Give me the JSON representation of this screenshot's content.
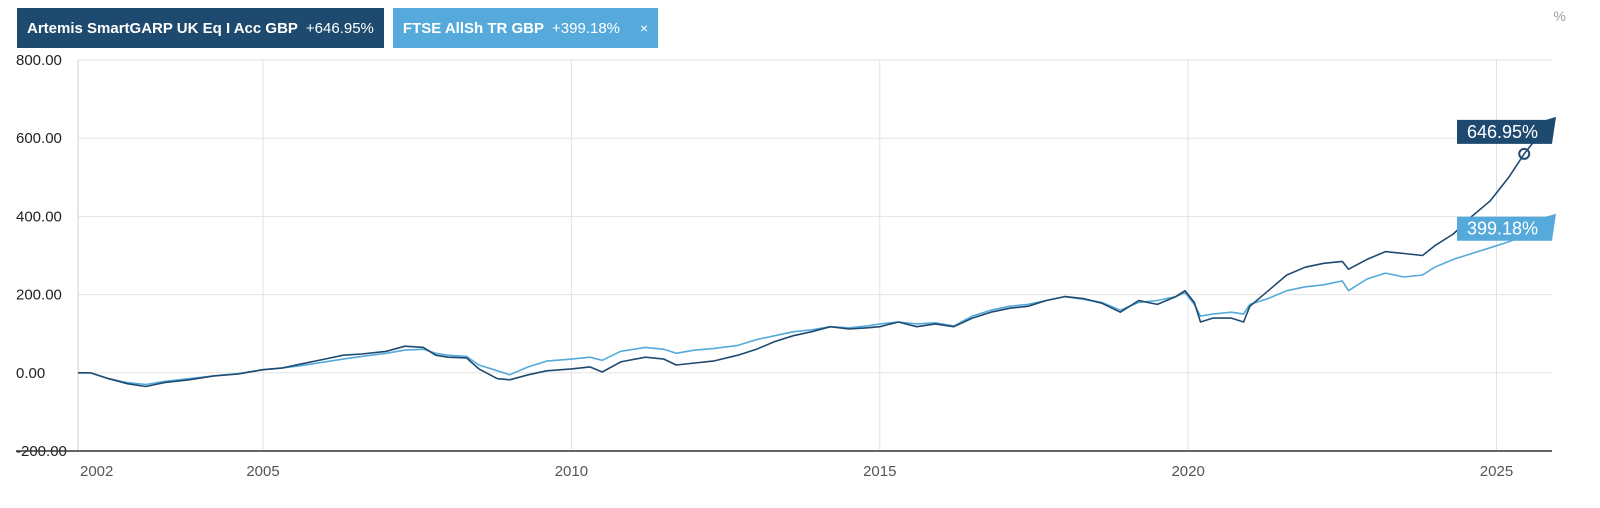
{
  "legend": {
    "fund": {
      "name": "Artemis SmartGARP UK Eq I Acc GBP",
      "change": "+646.95%"
    },
    "index": {
      "name": "FTSE AllSh TR GBP",
      "change": "+399.18%",
      "close_glyph": "×"
    }
  },
  "unit_label": "%",
  "colors": {
    "fund": "#1f4a70",
    "index": "#55aadb",
    "grid": "#e3e3e3"
  },
  "chart_data": {
    "type": "line",
    "title": "",
    "xlabel": "",
    "ylabel": "",
    "ylim": [
      -200,
      800
    ],
    "y_ticks": [
      {
        "value": 800,
        "label": "800.00"
      },
      {
        "value": 600,
        "label": "600.00"
      },
      {
        "value": 400,
        "label": "400.00"
      },
      {
        "value": 200,
        "label": "200.00"
      },
      {
        "value": 0,
        "label": "0.00"
      },
      {
        "value": -200,
        "label": "-200.00"
      }
    ],
    "x_ticks": [
      {
        "value": 2002,
        "label": "2002"
      },
      {
        "value": 2005,
        "label": "2005"
      },
      {
        "value": 2010,
        "label": "2010"
      },
      {
        "value": 2015,
        "label": "2015"
      },
      {
        "value": 2020,
        "label": "2020"
      },
      {
        "value": 2025,
        "label": "2025"
      }
    ],
    "xlim": [
      2002.0,
      2025.9
    ],
    "grid": true,
    "legend_position": "top-left",
    "series": [
      {
        "key": "fund",
        "name": "Artemis SmartGARP UK Eq I Acc GBP",
        "end_label": "646.95%",
        "points": [
          [
            2002.0,
            0
          ],
          [
            2002.2,
            0
          ],
          [
            2002.5,
            -15
          ],
          [
            2002.8,
            -28
          ],
          [
            2003.1,
            -35
          ],
          [
            2003.4,
            -25
          ],
          [
            2003.8,
            -18
          ],
          [
            2004.2,
            -8
          ],
          [
            2004.6,
            -3
          ],
          [
            2005.0,
            8
          ],
          [
            2005.3,
            12
          ],
          [
            2005.6,
            22
          ],
          [
            2006.0,
            35
          ],
          [
            2006.3,
            45
          ],
          [
            2006.6,
            48
          ],
          [
            2007.0,
            55
          ],
          [
            2007.3,
            68
          ],
          [
            2007.6,
            65
          ],
          [
            2007.8,
            45
          ],
          [
            2008.0,
            40
          ],
          [
            2008.3,
            38
          ],
          [
            2008.5,
            10
          ],
          [
            2008.8,
            -15
          ],
          [
            2009.0,
            -18
          ],
          [
            2009.3,
            -5
          ],
          [
            2009.6,
            5
          ],
          [
            2010.0,
            10
          ],
          [
            2010.3,
            15
          ],
          [
            2010.5,
            2
          ],
          [
            2010.8,
            28
          ],
          [
            2011.2,
            40
          ],
          [
            2011.5,
            35
          ],
          [
            2011.7,
            20
          ],
          [
            2012.0,
            25
          ],
          [
            2012.3,
            30
          ],
          [
            2012.7,
            45
          ],
          [
            2013.0,
            60
          ],
          [
            2013.3,
            80
          ],
          [
            2013.6,
            95
          ],
          [
            2013.9,
            105
          ],
          [
            2014.2,
            118
          ],
          [
            2014.5,
            112
          ],
          [
            2014.8,
            115
          ],
          [
            2015.0,
            118
          ],
          [
            2015.3,
            130
          ],
          [
            2015.6,
            118
          ],
          [
            2015.9,
            125
          ],
          [
            2016.2,
            118
          ],
          [
            2016.5,
            140
          ],
          [
            2016.8,
            155
          ],
          [
            2017.1,
            165
          ],
          [
            2017.4,
            170
          ],
          [
            2017.7,
            185
          ],
          [
            2018.0,
            195
          ],
          [
            2018.3,
            190
          ],
          [
            2018.6,
            178
          ],
          [
            2018.9,
            155
          ],
          [
            2019.2,
            185
          ],
          [
            2019.5,
            175
          ],
          [
            2019.8,
            195
          ],
          [
            2019.95,
            210
          ],
          [
            2020.1,
            180
          ],
          [
            2020.2,
            130
          ],
          [
            2020.4,
            140
          ],
          [
            2020.7,
            140
          ],
          [
            2020.9,
            130
          ],
          [
            2021.0,
            170
          ],
          [
            2021.3,
            210
          ],
          [
            2021.6,
            250
          ],
          [
            2021.9,
            270
          ],
          [
            2022.2,
            280
          ],
          [
            2022.5,
            285
          ],
          [
            2022.6,
            265
          ],
          [
            2022.9,
            290
          ],
          [
            2023.2,
            310
          ],
          [
            2023.5,
            305
          ],
          [
            2023.8,
            300
          ],
          [
            2024.0,
            325
          ],
          [
            2024.3,
            355
          ],
          [
            2024.6,
            400
          ],
          [
            2024.9,
            440
          ],
          [
            2025.2,
            500
          ],
          [
            2025.45,
            560
          ],
          [
            2025.7,
            610
          ],
          [
            2025.9,
            646.95
          ]
        ]
      },
      {
        "key": "index",
        "name": "FTSE AllSh TR GBP",
        "end_label": "399.18%",
        "points": [
          [
            2002.0,
            0
          ],
          [
            2002.2,
            0
          ],
          [
            2002.5,
            -15
          ],
          [
            2002.8,
            -25
          ],
          [
            2003.1,
            -30
          ],
          [
            2003.4,
            -22
          ],
          [
            2003.8,
            -15
          ],
          [
            2004.2,
            -8
          ],
          [
            2004.6,
            -2
          ],
          [
            2005.0,
            8
          ],
          [
            2005.3,
            12
          ],
          [
            2005.6,
            18
          ],
          [
            2006.0,
            28
          ],
          [
            2006.3,
            35
          ],
          [
            2006.6,
            42
          ],
          [
            2007.0,
            50
          ],
          [
            2007.3,
            58
          ],
          [
            2007.6,
            60
          ],
          [
            2007.8,
            50
          ],
          [
            2008.0,
            45
          ],
          [
            2008.3,
            42
          ],
          [
            2008.5,
            20
          ],
          [
            2008.8,
            5
          ],
          [
            2009.0,
            -5
          ],
          [
            2009.3,
            15
          ],
          [
            2009.6,
            30
          ],
          [
            2010.0,
            35
          ],
          [
            2010.3,
            40
          ],
          [
            2010.5,
            32
          ],
          [
            2010.8,
            55
          ],
          [
            2011.2,
            65
          ],
          [
            2011.5,
            60
          ],
          [
            2011.7,
            50
          ],
          [
            2012.0,
            58
          ],
          [
            2012.3,
            62
          ],
          [
            2012.7,
            70
          ],
          [
            2013.0,
            85
          ],
          [
            2013.3,
            95
          ],
          [
            2013.6,
            105
          ],
          [
            2013.9,
            110
          ],
          [
            2014.2,
            118
          ],
          [
            2014.5,
            115
          ],
          [
            2014.8,
            120
          ],
          [
            2015.0,
            125
          ],
          [
            2015.3,
            130
          ],
          [
            2015.6,
            125
          ],
          [
            2015.9,
            128
          ],
          [
            2016.2,
            120
          ],
          [
            2016.5,
            145
          ],
          [
            2016.8,
            160
          ],
          [
            2017.1,
            170
          ],
          [
            2017.4,
            175
          ],
          [
            2017.7,
            185
          ],
          [
            2018.0,
            195
          ],
          [
            2018.3,
            188
          ],
          [
            2018.6,
            180
          ],
          [
            2018.9,
            160
          ],
          [
            2019.2,
            180
          ],
          [
            2019.5,
            185
          ],
          [
            2019.8,
            195
          ],
          [
            2019.95,
            205
          ],
          [
            2020.1,
            175
          ],
          [
            2020.2,
            145
          ],
          [
            2020.4,
            150
          ],
          [
            2020.7,
            155
          ],
          [
            2020.9,
            150
          ],
          [
            2021.0,
            175
          ],
          [
            2021.3,
            190
          ],
          [
            2021.6,
            210
          ],
          [
            2021.9,
            220
          ],
          [
            2022.2,
            225
          ],
          [
            2022.5,
            235
          ],
          [
            2022.6,
            210
          ],
          [
            2022.9,
            240
          ],
          [
            2023.2,
            255
          ],
          [
            2023.5,
            245
          ],
          [
            2023.8,
            250
          ],
          [
            2024.0,
            270
          ],
          [
            2024.3,
            290
          ],
          [
            2024.6,
            305
          ],
          [
            2024.9,
            320
          ],
          [
            2025.2,
            335
          ],
          [
            2025.45,
            350
          ],
          [
            2025.7,
            380
          ],
          [
            2025.9,
            399.18
          ]
        ]
      }
    ]
  }
}
